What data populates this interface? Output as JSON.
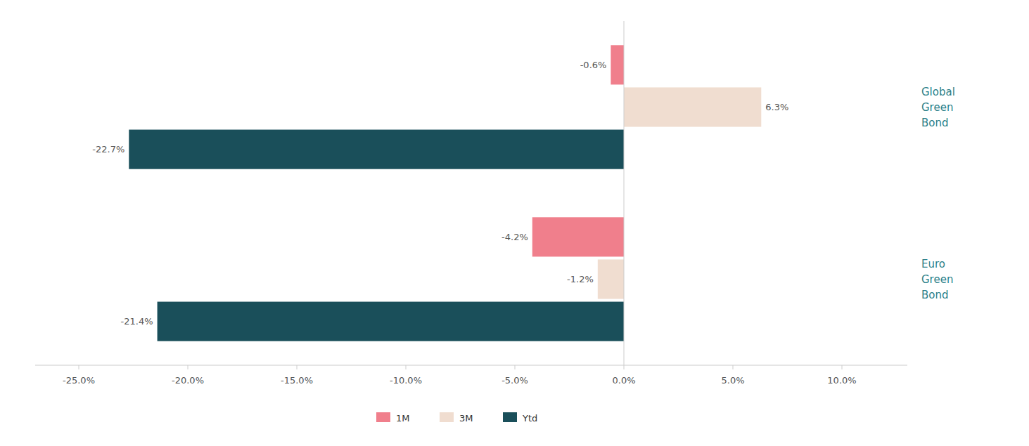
{
  "chart_data": {
    "type": "bar",
    "orientation": "horizontal",
    "categories": [
      "Global\nGreen\nBond",
      "Euro\nGreen\nBond"
    ],
    "series": [
      {
        "name": "1M",
        "color": "#f07f8c",
        "values": [
          -0.6,
          -4.2
        ],
        "value_labels": [
          "-0.6%",
          "-4.2%"
        ]
      },
      {
        "name": "3M",
        "color": "#f0ddd0",
        "values": [
          6.3,
          -1.2
        ],
        "value_labels": [
          "6.3%",
          "-1.2%"
        ]
      },
      {
        "name": "Ytd",
        "color": "#1a4f5a",
        "values": [
          -22.7,
          -21.4
        ],
        "value_labels": [
          "-22.7%",
          "-21.4%"
        ]
      }
    ],
    "xlim": [
      -27,
      13
    ],
    "xticks": [
      {
        "value": -25,
        "label": "-25.0%"
      },
      {
        "value": -20,
        "label": "-20.0%"
      },
      {
        "value": -15,
        "label": "-15.0%"
      },
      {
        "value": -10,
        "label": "-10.0%"
      },
      {
        "value": -5,
        "label": "-5.0%"
      },
      {
        "value": 0,
        "label": "0.0%"
      },
      {
        "value": 5,
        "label": "5.0%"
      },
      {
        "value": 10,
        "label": "10.0%"
      }
    ],
    "data_labels": true,
    "legend": "bottom",
    "grid": false
  }
}
